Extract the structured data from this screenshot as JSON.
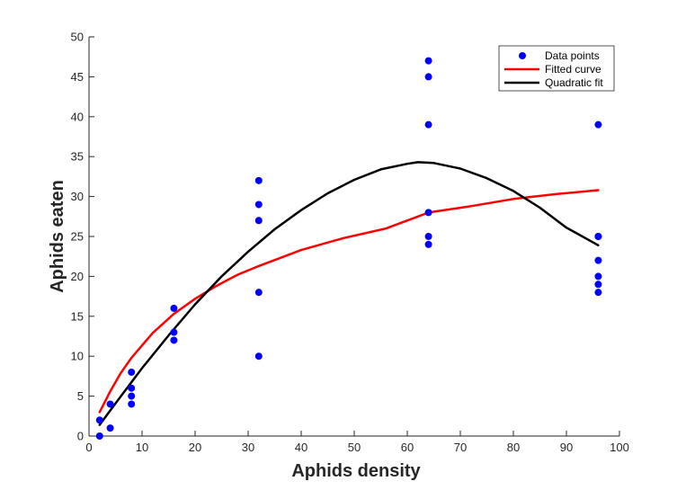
{
  "chart_data": {
    "type": "scatter",
    "title": "",
    "xlabel": "Aphids density",
    "ylabel": "Aphids eaten",
    "xlim": [
      0,
      100
    ],
    "ylim": [
      0,
      50
    ],
    "xticks": [
      0,
      10,
      20,
      30,
      40,
      50,
      60,
      70,
      80,
      90,
      100
    ],
    "yticks": [
      0,
      5,
      10,
      15,
      20,
      25,
      30,
      35,
      40,
      45,
      50
    ],
    "grid": false,
    "legend_position": "top-right",
    "series": [
      {
        "name": "Data points",
        "kind": "scatter",
        "color": "#0000ff",
        "x": [
          2,
          2,
          4,
          4,
          8,
          8,
          8,
          8,
          16,
          16,
          16,
          32,
          32,
          32,
          32,
          32,
          64,
          64,
          64,
          64,
          64,
          64,
          96,
          96,
          96,
          96,
          96,
          96,
          96
        ],
        "y": [
          0,
          2,
          1,
          4,
          4,
          5,
          6,
          8,
          12,
          13,
          16,
          10,
          18,
          27,
          29,
          32,
          24,
          25,
          28,
          39,
          45,
          47,
          18,
          19,
          20,
          22,
          25,
          25,
          39
        ]
      },
      {
        "name": "Fitted curve",
        "kind": "line",
        "color": "#ff0000",
        "x": [
          2,
          4,
          6,
          8,
          12,
          16,
          20,
          24,
          28,
          32,
          40,
          48,
          56,
          64,
          72,
          80,
          88,
          96
        ],
        "y": [
          3.0,
          5.6,
          7.9,
          9.8,
          12.9,
          15.3,
          17.2,
          18.8,
          20.2,
          21.3,
          23.3,
          24.8,
          26.0,
          28.0,
          28.8,
          29.7,
          30.3,
          30.8
        ]
      },
      {
        "name": "Quadratic fit",
        "kind": "line",
        "color": "#000000",
        "x": [
          2,
          5,
          10,
          15,
          20,
          25,
          30,
          35,
          40,
          45,
          50,
          55,
          60,
          62,
          65,
          70,
          75,
          80,
          85,
          90,
          96
        ],
        "y": [
          1.4,
          4.1,
          8.5,
          12.6,
          16.5,
          20.0,
          23.1,
          25.9,
          28.3,
          30.4,
          32.1,
          33.4,
          34.1,
          34.3,
          34.2,
          33.5,
          32.3,
          30.7,
          28.6,
          26.1,
          23.9
        ]
      }
    ]
  }
}
